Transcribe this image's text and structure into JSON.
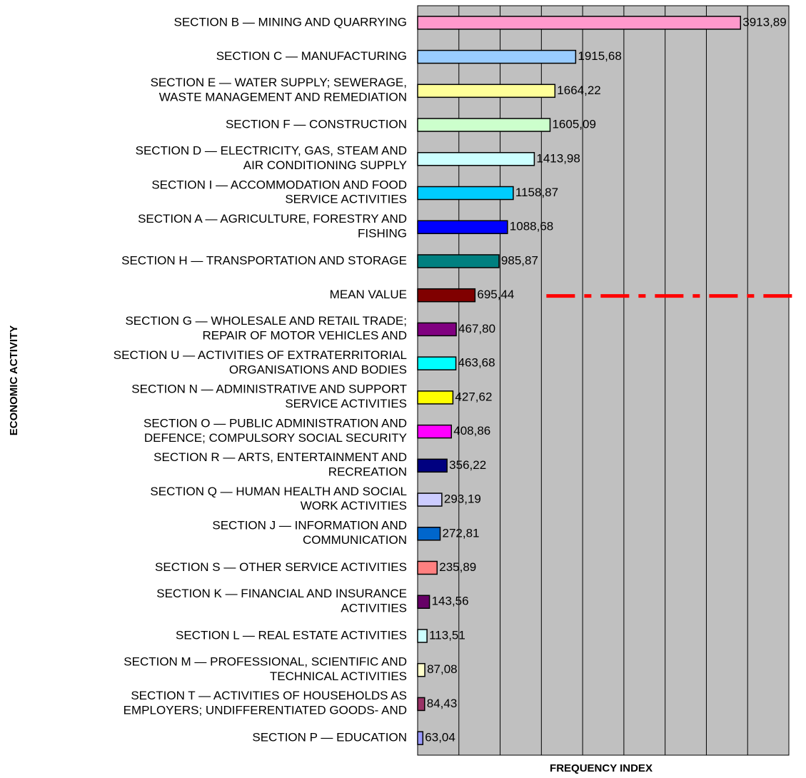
{
  "chart_data": {
    "type": "barh",
    "xlabel": "FREQUENCY INDEX",
    "ylabel": "ECONOMIC ACTIVITY",
    "categories": [
      "SECTION B — MINING AND QUARRYING",
      "SECTION C — MANUFACTURING",
      "SECTION E — WATER SUPPLY; SEWERAGE,\nWASTE MANAGEMENT AND REMEDIATION",
      "SECTION F — CONSTRUCTION",
      "SECTION D — ELECTRICITY, GAS, STEAM AND\nAIR CONDITIONING SUPPLY",
      "SECTION I — ACCOMMODATION AND FOOD\nSERVICE ACTIVITIES",
      "SECTION A — AGRICULTURE, FORESTRY AND\nFISHING",
      "SECTION H — TRANSPORTATION AND STORAGE",
      "MEAN VALUE",
      "SECTION G — WHOLESALE AND RETAIL TRADE;\nREPAIR OF MOTOR VEHICLES AND",
      "SECTION U — ACTIVITIES OF EXTRATERRITORIAL\nORGANISATIONS AND BODIES",
      "SECTION N — ADMINISTRATIVE AND SUPPORT\nSERVICE ACTIVITIES",
      "SECTION O — PUBLIC ADMINISTRATION AND\nDEFENCE; COMPULSORY SOCIAL SECURITY",
      "SECTION R — ARTS, ENTERTAINMENT AND\nRECREATION",
      "SECTION Q — HUMAN HEALTH AND SOCIAL\nWORK ACTIVITIES",
      "SECTION J — INFORMATION AND\nCOMMUNICATION",
      "SECTION S — OTHER SERVICE ACTIVITIES",
      "SECTION K — FINANCIAL AND INSURANCE\nACTIVITIES",
      "SECTION L — REAL ESTATE ACTIVITIES",
      "SECTION M — PROFESSIONAL, SCIENTIFIC AND\nTECHNICAL ACTIVITIES",
      "SECTION T — ACTIVITIES OF HOUSEHOLDS AS\nEMPLOYERS; UNDIFFERENTIATED GOODS- AND",
      "SECTION P — EDUCATION"
    ],
    "values": [
      3913.89,
      1915.68,
      1664.22,
      1605.09,
      1413.98,
      1158.87,
      1088.68,
      985.87,
      695.44,
      467.8,
      463.68,
      427.62,
      408.86,
      356.22,
      293.19,
      272.81,
      235.89,
      143.56,
      113.51,
      87.08,
      84.43,
      63.04
    ],
    "value_labels": [
      "3913,89",
      "1915,68",
      "1664,22",
      "1605,09",
      "1413,98",
      "1158,87",
      "1088,68",
      "985,87",
      "695,44",
      "467,80",
      "463,68",
      "427,62",
      "408,86",
      "356,22",
      "293,19",
      "272,81",
      "235,89",
      "143,56",
      "113,51",
      "87,08",
      "84,43",
      "63,04"
    ],
    "colors": [
      "#ff99cc",
      "#99ccff",
      "#ffff99",
      "#ccffcc",
      "#ccffff",
      "#00ccff",
      "#0000ff",
      "#008080",
      "#800000",
      "#800080",
      "#00ffff",
      "#ffff00",
      "#ff00ff",
      "#000080",
      "#ccccff",
      "#0066cc",
      "#ff8080",
      "#660066",
      "#ccffff",
      "#ffffcc",
      "#993366",
      "#9999ff"
    ],
    "xlim": [
      0,
      4500
    ],
    "xticks": [
      0,
      500,
      1000,
      1500,
      2000,
      2500,
      3000,
      3500,
      4000,
      4500
    ],
    "grid": true
  }
}
